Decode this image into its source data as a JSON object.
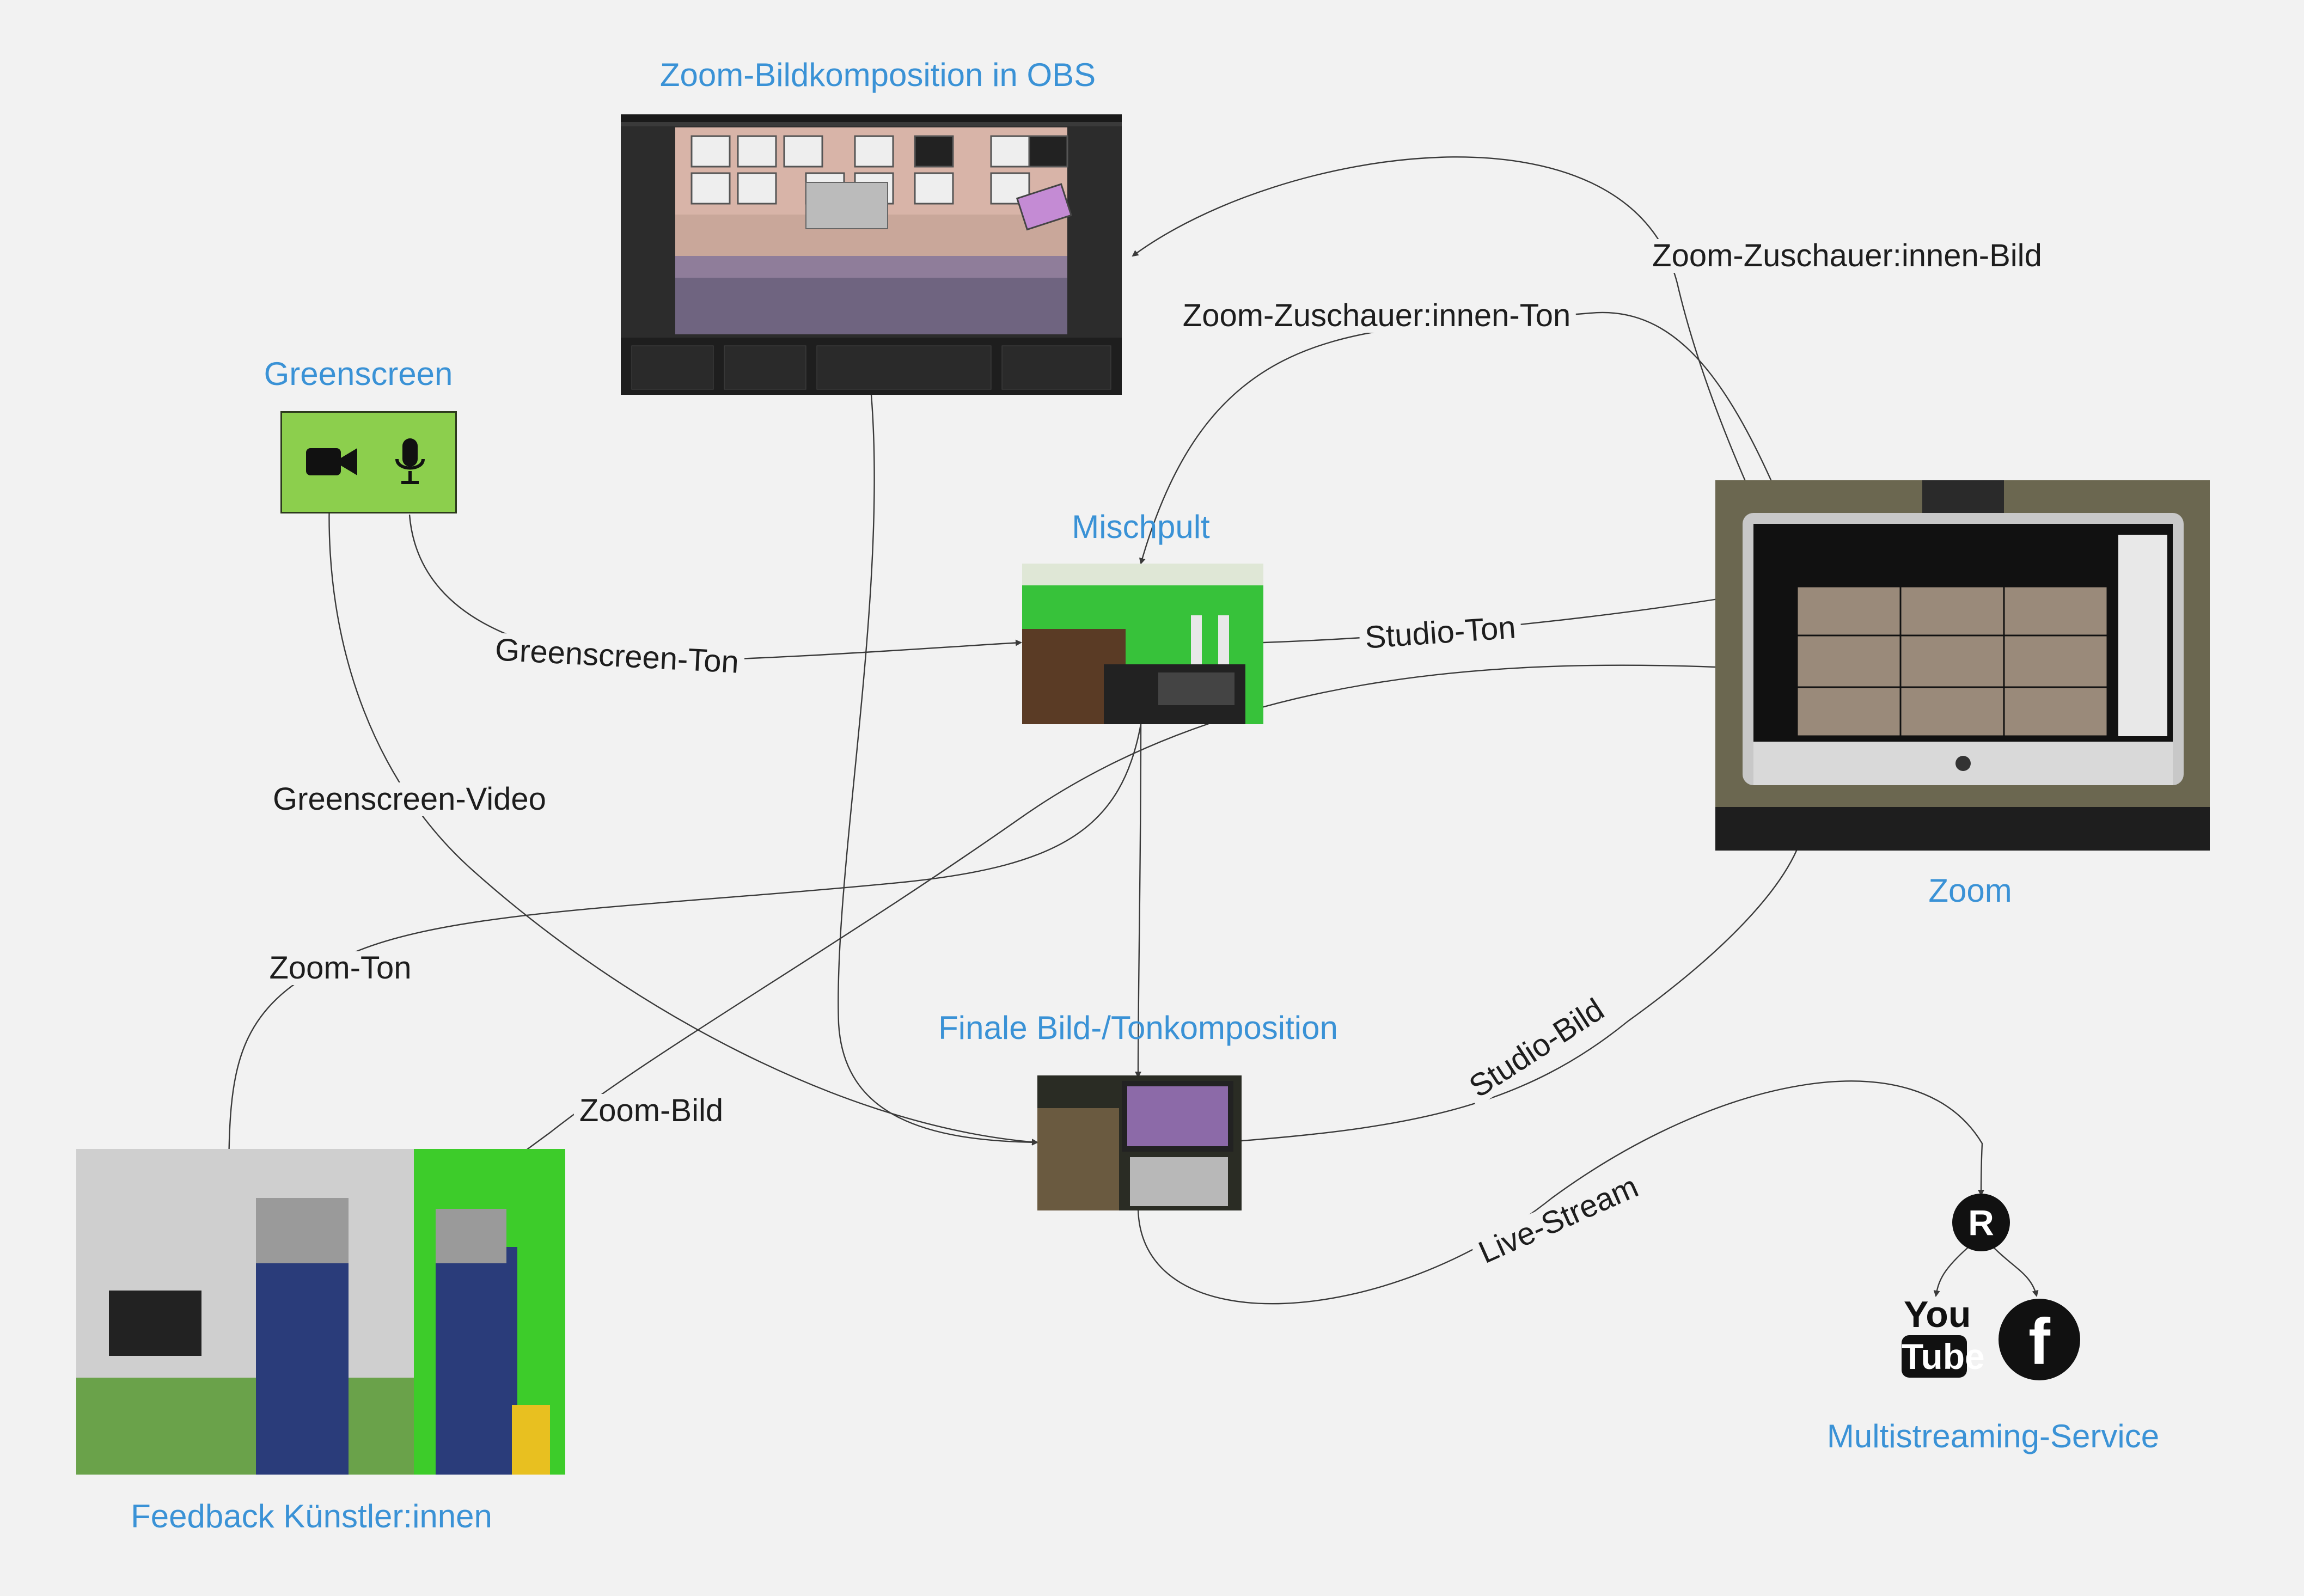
{
  "nodes": {
    "obs": {
      "title": "Zoom-Bildkomposition in OBS"
    },
    "greenscreen": {
      "title": "Greenscreen",
      "icons": [
        "video-camera-icon",
        "microphone-icon"
      ],
      "color": "#8ccf4d"
    },
    "mischpult": {
      "title": "Mischpult"
    },
    "zoom": {
      "title": "Zoom"
    },
    "final": {
      "title": "Finale Bild-/Tonkomposition"
    },
    "feedback": {
      "title": "Feedback Künstler:innen"
    },
    "multistream": {
      "title": "Multistreaming-Service",
      "logo_letter": "R",
      "platforms": [
        "youtube-icon",
        "facebook-icon"
      ],
      "youtube_text": [
        "You",
        "Tube"
      ],
      "facebook_text": "f"
    }
  },
  "edges": {
    "zoom_zuschauer_bild": "Zoom-Zuschauer:innen-Bild",
    "zoom_zuschauer_ton": "Zoom-Zuschauer:innen-Ton",
    "greenscreen_ton": "Greenscreen-Ton",
    "studio_ton": "Studio-Ton",
    "greenscreen_video": "Greenscreen-Video",
    "zoom_ton": "Zoom-Ton",
    "zoom_bild": "Zoom-Bild",
    "studio_bild": "Studio-Bild",
    "live_stream": "Live-Stream"
  },
  "colors": {
    "title": "#3a92d6",
    "background": "#f2f2f2",
    "wire": "#3a3a3a"
  }
}
